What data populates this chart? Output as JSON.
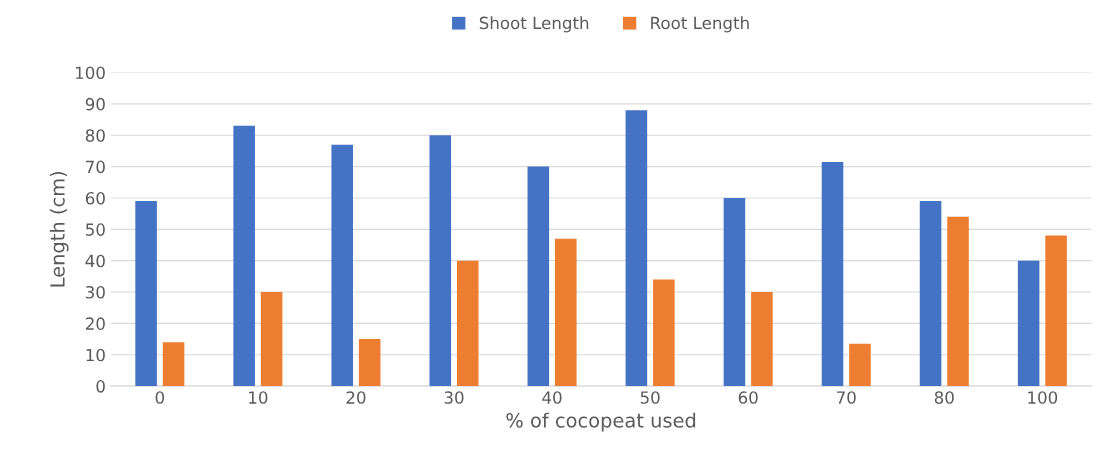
{
  "chart_data": {
    "type": "bar",
    "xlabel": "% of cocopeat used",
    "ylabel": "Length (cm)",
    "categories": [
      "0",
      "10",
      "20",
      "30",
      "40",
      "50",
      "60",
      "70",
      "80",
      "100"
    ],
    "series": [
      {
        "name": "Shoot Length",
        "color": "#4472c4",
        "values": [
          59,
          83,
          77,
          80,
          70,
          88,
          60,
          71.5,
          59,
          40
        ]
      },
      {
        "name": "Root Length",
        "color": "#ed7d31",
        "values": [
          14,
          30,
          15,
          40,
          47,
          34,
          30,
          13.5,
          54,
          48
        ]
      }
    ],
    "ylim": [
      0,
      100
    ],
    "yticks": [
      0,
      10,
      20,
      30,
      40,
      50,
      60,
      70,
      80,
      90,
      100
    ],
    "grid": "y",
    "legend": "top"
  }
}
